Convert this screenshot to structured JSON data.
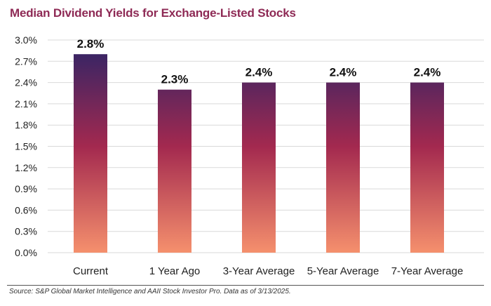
{
  "colors": {
    "title": "#8e2a55",
    "bar_top": "#2b2467",
    "bar_mid": "#a3294f",
    "bar_bottom": "#f5906d",
    "axis_text": "#222222",
    "gridline": "#d9d9d9"
  },
  "source": "Source: S&P Global Market Intelligence and AAII Stock Investor Pro. Data as of 3/13/2025.",
  "chart_data": {
    "type": "bar",
    "title": "Median Dividend Yields for Exchange-Listed Stocks",
    "xlabel": "",
    "ylabel": "",
    "categories": [
      "Current",
      "1 Year Ago",
      "3-Year Average",
      "5-Year Average",
      "7-Year Average"
    ],
    "values": [
      2.8,
      2.3,
      2.4,
      2.4,
      2.4
    ],
    "data_labels": [
      "2.8%",
      "2.3%",
      "2.4%",
      "2.4%",
      "2.4%"
    ],
    "ylim": [
      0,
      3.0
    ],
    "yticks": [
      "0.0%",
      "0.3%",
      "0.6%",
      "0.9%",
      "1.2%",
      "1.5%",
      "1.8%",
      "2.1%",
      "2.4%",
      "2.7%",
      "3.0%"
    ],
    "grid": true,
    "legend": "none"
  }
}
